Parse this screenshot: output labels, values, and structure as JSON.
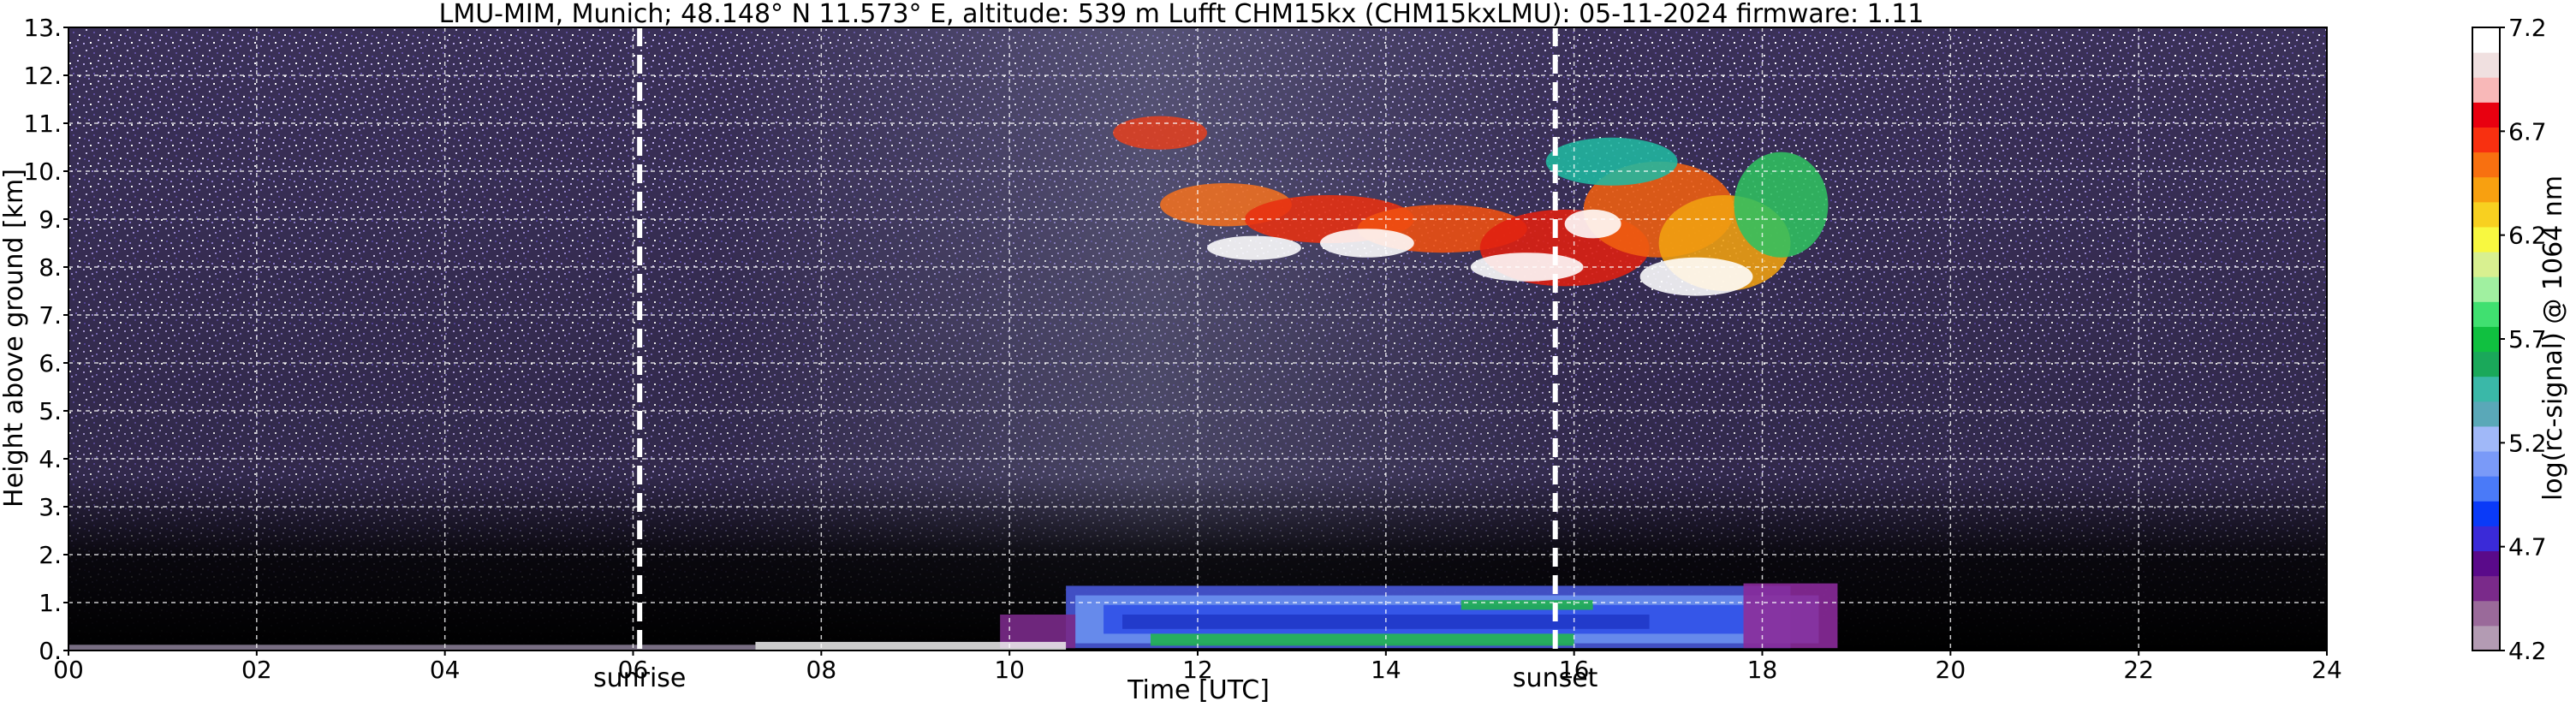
{
  "chart_data": {
    "type": "heatmap",
    "title": "LMU-MIM, Munich; 48.148° N 11.573° E, altitude: 539 m    Lufft CHM15kx (CHM15kxLMU): 05-11-2024    firmware: 1.11",
    "xlabel": "Time [UTC]",
    "ylabel": "Height above ground [km]",
    "xlim": [
      0,
      24
    ],
    "ylim": [
      0,
      13
    ],
    "x_ticks": [
      "00",
      "02",
      "04",
      "06",
      "08",
      "10",
      "12",
      "14",
      "16",
      "18",
      "20",
      "22",
      "24"
    ],
    "y_ticks": [
      "0.",
      "1.",
      "2.",
      "3.",
      "4.",
      "5.",
      "6.",
      "7.",
      "8.",
      "9.",
      "10.",
      "11.",
      "12.",
      "13."
    ],
    "grid": true,
    "colorbar": {
      "label": "log(rc-signal) @ 1064 nm",
      "range": [
        4.2,
        7.2
      ],
      "ticks": [
        "4.2",
        "4.7",
        "5.2",
        "5.7",
        "6.2",
        "6.7",
        "7.2"
      ],
      "colors": [
        "#b39bb3",
        "#9a6a9a",
        "#7a2a8a",
        "#5a0a8a",
        "#3a2ad8",
        "#0a3af8",
        "#4a7af8",
        "#7a9af8",
        "#a0b8f8",
        "#5aa8b8",
        "#3ab8a8",
        "#1aa85a",
        "#10c040",
        "#40e070",
        "#a0f0a0",
        "#d8f090",
        "#f8f840",
        "#f8d020",
        "#f8a010",
        "#f87010",
        "#f83010",
        "#e80010",
        "#f8b8b8",
        "#f0e0e0",
        "#ffffff"
      ]
    },
    "annotations": [
      {
        "x": 6.07,
        "label": "sunrise"
      },
      {
        "x": 15.8,
        "label": "sunset"
      }
    ]
  }
}
